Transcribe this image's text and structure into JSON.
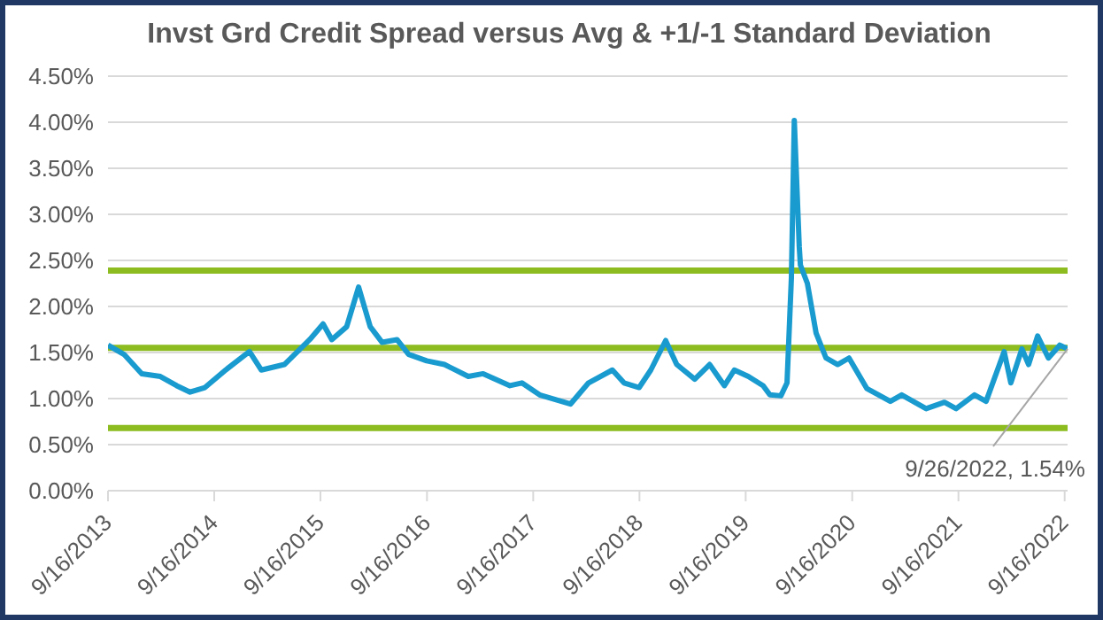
{
  "chart_data": {
    "type": "line",
    "title": "Invst Grd Credit Spread versus Avg & +1/-1 Standard Deviation",
    "x": [
      "2013-09-16",
      "2013-11-10",
      "2014-01-10",
      "2014-03-15",
      "2014-05-10",
      "2014-06-25",
      "2014-08-15",
      "2014-10-25",
      "2015-01-15",
      "2015-02-25",
      "2015-05-15",
      "2015-08-10",
      "2015-09-25",
      "2015-10-25",
      "2015-12-15",
      "2016-01-25",
      "2016-03-05",
      "2016-04-15",
      "2016-06-05",
      "2016-07-15",
      "2016-09-15",
      "2016-11-15",
      "2017-02-05",
      "2017-03-28",
      "2017-06-28",
      "2017-08-08",
      "2017-10-08",
      "2018-01-22",
      "2018-03-25",
      "2018-06-15",
      "2018-07-25",
      "2018-09-15",
      "2018-10-25",
      "2018-12-15",
      "2019-01-22",
      "2019-03-25",
      "2019-05-15",
      "2019-07-05",
      "2019-08-08",
      "2019-09-25",
      "2019-11-15",
      "2019-12-08",
      "2020-01-15",
      "2020-02-05",
      "2020-02-20",
      "2020-03-01",
      "2020-03-18",
      "2020-03-22",
      "2020-04-15",
      "2020-05-15",
      "2020-06-18",
      "2020-07-28",
      "2020-09-05",
      "2020-11-05",
      "2021-01-25",
      "2021-03-05",
      "2021-05-28",
      "2021-07-30",
      "2021-09-08",
      "2021-11-10",
      "2021-12-20",
      "2022-02-20",
      "2022-03-15",
      "2022-04-22",
      "2022-05-15",
      "2022-06-15",
      "2022-07-22",
      "2022-08-30",
      "2022-09-26"
    ],
    "series": [
      {
        "color": "#1a9bcf",
        "values": [
          1.58,
          1.48,
          1.27,
          1.24,
          1.14,
          1.07,
          1.12,
          1.31,
          1.51,
          1.31,
          1.37,
          1.64,
          1.81,
          1.64,
          1.78,
          2.21,
          1.78,
          1.61,
          1.64,
          1.48,
          1.41,
          1.37,
          1.24,
          1.27,
          1.14,
          1.17,
          1.04,
          0.94,
          1.17,
          1.31,
          1.17,
          1.12,
          1.31,
          1.63,
          1.37,
          1.21,
          1.37,
          1.14,
          1.31,
          1.24,
          1.14,
          1.04,
          1.03,
          1.17,
          2.31,
          4.02,
          2.65,
          2.45,
          2.25,
          1.71,
          1.44,
          1.37,
          1.44,
          1.11,
          0.97,
          1.04,
          0.89,
          0.96,
          0.89,
          1.04,
          0.97,
          1.51,
          1.17,
          1.54,
          1.37,
          1.68,
          1.44,
          1.58,
          1.54
        ]
      }
    ],
    "xlim": [
      "2013-09-16",
      "2022-09-26"
    ],
    "xticks": [
      {
        "value": "2013-09-16",
        "label": "9/16/2013"
      },
      {
        "value": "2014-09-16",
        "label": "9/16/2014"
      },
      {
        "value": "2015-09-16",
        "label": "9/16/2015"
      },
      {
        "value": "2016-09-16",
        "label": "9/16/2016"
      },
      {
        "value": "2017-09-16",
        "label": "9/16/2017"
      },
      {
        "value": "2018-09-16",
        "label": "9/16/2018"
      },
      {
        "value": "2019-09-16",
        "label": "9/16/2019"
      },
      {
        "value": "2020-09-16",
        "label": "9/16/2020"
      },
      {
        "value": "2021-09-16",
        "label": "9/16/2021"
      },
      {
        "value": "2022-09-16",
        "label": "9/16/2022"
      }
    ],
    "ylim": [
      0,
      4.5
    ],
    "yticks": [
      {
        "value": 0,
        "label": "0.00%"
      },
      {
        "value": 0.5,
        "label": "0.50%"
      },
      {
        "value": 1,
        "label": "1.00%"
      },
      {
        "value": 1.5,
        "label": "1.50%"
      },
      {
        "value": 2,
        "label": "2.00%"
      },
      {
        "value": 2.5,
        "label": "2.50%"
      },
      {
        "value": 3,
        "label": "3.00%"
      },
      {
        "value": 3.5,
        "label": "3.50%"
      },
      {
        "value": 4,
        "label": "4.00%"
      },
      {
        "value": 4.5,
        "label": "4.50%"
      }
    ],
    "ref_lines": [
      {
        "axis": "y",
        "value": 2.39,
        "color": "#8cbc1f"
      },
      {
        "axis": "y",
        "value": 1.55,
        "color": "#8cbc1f"
      },
      {
        "axis": "y",
        "value": 0.68,
        "color": "#8cbc1f"
      }
    ],
    "annotations": [
      {
        "text": "9/26/2022, 1.54%",
        "x": "2022-09-26",
        "y": 1.54
      }
    ],
    "grid": "y",
    "marker": "none",
    "line_style": "solid"
  }
}
